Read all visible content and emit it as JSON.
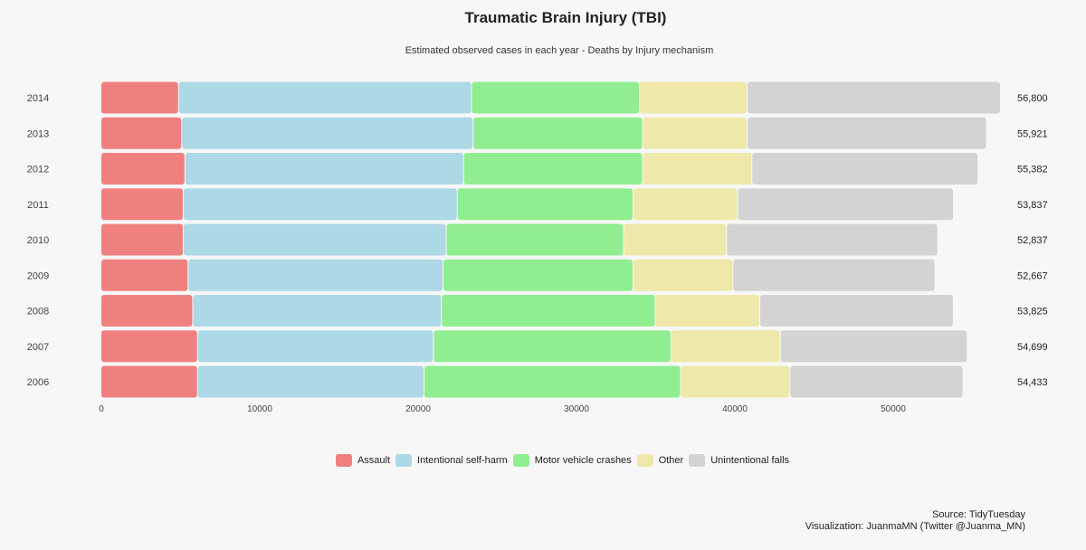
{
  "chart_data": {
    "type": "bar",
    "orientation": "horizontal",
    "stacked": true,
    "title": "Traumatic Brain Injury (TBI)",
    "subtitle": "Estimated observed cases in each year  - Deaths by Injury mechanism",
    "categories": [
      "2014",
      "2013",
      "2012",
      "2011",
      "2010",
      "2009",
      "2008",
      "2007",
      "2006"
    ],
    "series": [
      {
        "name": "Assault",
        "color": "#f08080",
        "values": [
          4900,
          5100,
          5300,
          5200,
          5200,
          5500,
          5800,
          6100,
          6100
        ]
      },
      {
        "name": "Intentional self-harm",
        "color": "#add8e6",
        "values": [
          18500,
          18400,
          17600,
          17300,
          16600,
          16100,
          15700,
          14900,
          14300
        ]
      },
      {
        "name": "Motor vehicle crashes",
        "color": "#90ee90",
        "values": [
          10600,
          10700,
          11300,
          11100,
          11200,
          12000,
          13500,
          15000,
          16200
        ]
      },
      {
        "name": "Other",
        "color": "#eee8aa",
        "values": [
          6800,
          6600,
          6900,
          6600,
          6500,
          6300,
          6600,
          6900,
          6900
        ]
      },
      {
        "name": "Unintentional falls",
        "color": "#d3d3d3",
        "values": [
          16000,
          15121,
          14282,
          13637,
          13337,
          12767,
          12225,
          11799,
          10933
        ]
      }
    ],
    "totals": [
      "56,800",
      "55,921",
      "55,382",
      "53,837",
      "52,837",
      "52,667",
      "53,825",
      "54,699",
      "54,433"
    ],
    "x_ticks": [
      "0",
      "10000",
      "20000",
      "30000",
      "40000",
      "50000"
    ],
    "xlim": [
      0,
      57000
    ],
    "xlabel": "",
    "ylabel": "",
    "legend_position": "bottom",
    "grid": false
  },
  "caption": {
    "source": "Source: TidyTuesday",
    "credit": "Visualization: JuanmaMN (Twitter @Juanma_MN)"
  }
}
